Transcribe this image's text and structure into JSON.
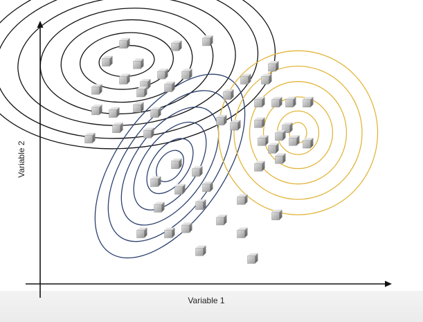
{
  "chart_data": {
    "type": "scatter",
    "xlabel": "Variable 1",
    "ylabel": "Variable 2",
    "xlim": [
      0,
      100
    ],
    "ylim": [
      0,
      100
    ],
    "grid": false,
    "legend": "none",
    "colors": {
      "axis": "#111111",
      "cluster_black": "#111111",
      "cluster_blue": "#2b3f6e",
      "cluster_yellow": "#e2b53a",
      "point_light": "#d6d6d6",
      "point_dark": "#8a8a8a"
    },
    "clusters": [
      {
        "color": "cluster_black",
        "center": [
          25,
          87
        ],
        "angle_deg": -5,
        "rx": [
          8,
          13.5,
          19,
          25,
          31.5,
          38,
          43
        ],
        "ry": [
          6,
          11,
          16,
          20.5,
          25,
          30,
          34
        ]
      },
      {
        "color": "cluster_blue",
        "center": [
          37.5,
          46
        ],
        "angle_deg": -55,
        "rx": [
          5,
          9,
          14.5,
          19.5,
          25,
          30.5
        ],
        "ry": [
          4.5,
          7,
          10.5,
          14,
          17.5,
          21
        ]
      },
      {
        "color": "cluster_yellow",
        "center": [
          74.5,
          59
        ],
        "angle_deg": 0,
        "rx": [
          2.5,
          6,
          10,
          14,
          18.5,
          23
        ],
        "ry": [
          4,
          8.5,
          14,
          20,
          26,
          32
        ]
      }
    ],
    "points": [
      [
        24,
        94
      ],
      [
        39,
        93
      ],
      [
        48,
        95
      ],
      [
        19,
        87
      ],
      [
        28,
        86
      ],
      [
        35,
        82
      ],
      [
        24,
        80
      ],
      [
        30,
        78
      ],
      [
        37,
        77
      ],
      [
        42,
        82
      ],
      [
        16,
        76
      ],
      [
        29,
        75
      ],
      [
        16,
        68
      ],
      [
        21,
        67
      ],
      [
        28,
        69
      ],
      [
        33,
        67
      ],
      [
        14,
        57
      ],
      [
        22,
        61
      ],
      [
        31,
        59
      ],
      [
        54,
        74
      ],
      [
        59,
        80
      ],
      [
        65,
        80
      ],
      [
        67,
        85
      ],
      [
        63,
        71
      ],
      [
        68,
        71
      ],
      [
        72,
        71
      ],
      [
        77,
        71
      ],
      [
        52,
        64
      ],
      [
        56,
        62
      ],
      [
        63,
        63
      ],
      [
        71,
        61
      ],
      [
        64,
        56
      ],
      [
        69,
        58
      ],
      [
        73,
        56
      ],
      [
        67,
        53
      ],
      [
        77,
        55
      ],
      [
        63,
        46
      ],
      [
        69,
        49
      ],
      [
        39,
        47
      ],
      [
        45,
        44
      ],
      [
        33,
        40
      ],
      [
        40,
        37
      ],
      [
        48,
        38
      ],
      [
        34,
        30
      ],
      [
        46,
        31
      ],
      [
        58,
        33
      ],
      [
        68,
        27
      ],
      [
        29,
        20
      ],
      [
        37,
        20
      ],
      [
        42,
        22
      ],
      [
        52,
        25
      ],
      [
        58,
        20
      ],
      [
        46,
        13
      ],
      [
        61,
        10
      ]
    ]
  }
}
